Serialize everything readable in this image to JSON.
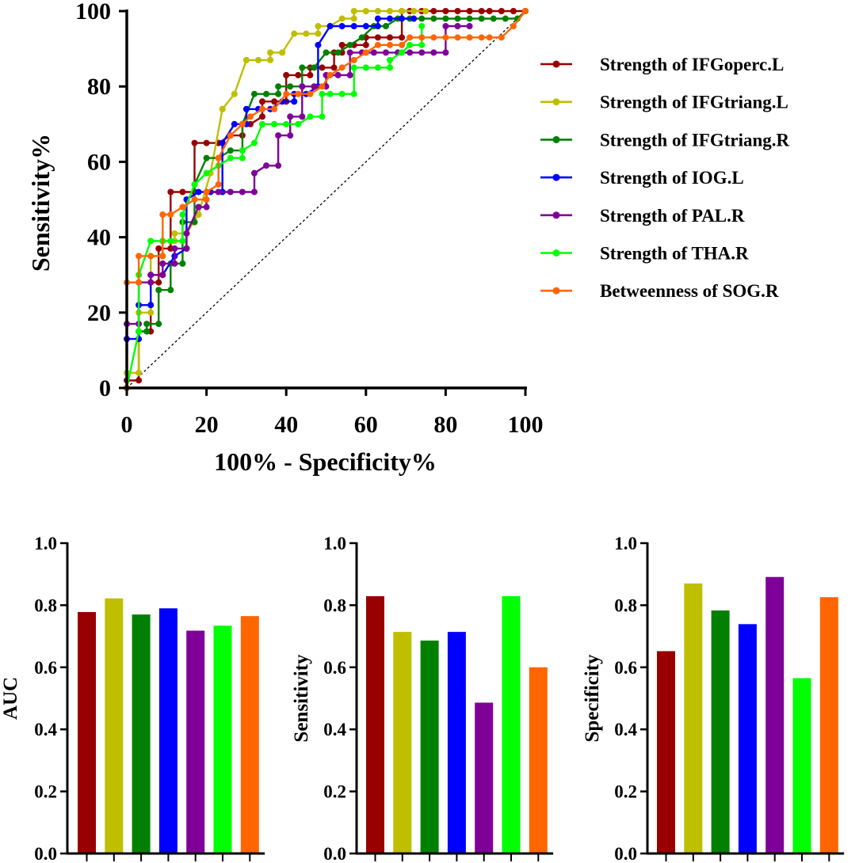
{
  "colors": {
    "IFGoperc_L": "#990000",
    "IFGtriang_L": "#BFBF00",
    "IFGtriang_R": "#008000",
    "IOG_L": "#0000FF",
    "PAL_R": "#7F0099",
    "THA_R": "#00FF00",
    "SOG_R": "#FF6600"
  },
  "chart_data": [
    {
      "type": "line",
      "chart": "roc",
      "xlabel": "100% - Specificity%",
      "ylabel": "Sensitivity%",
      "xlim": [
        0,
        100
      ],
      "ylim": [
        0,
        100
      ],
      "xticks": [
        "0",
        "20",
        "40",
        "60",
        "80",
        "100"
      ],
      "yticks": [
        "0",
        "20",
        "40",
        "60",
        "80",
        "100"
      ],
      "reference_line": [
        [
          0,
          0
        ],
        [
          100,
          100
        ]
      ],
      "legend_position": "right",
      "series": [
        {
          "name": "Strength of IFGoperc.L",
          "color_key": "IFGoperc_L",
          "x": [
            0,
            0,
            3,
            3,
            6,
            6,
            8,
            8,
            11,
            11,
            14,
            17,
            17,
            20,
            23,
            23,
            26,
            29,
            29,
            31,
            34,
            34,
            37,
            40,
            40,
            43,
            46,
            46,
            49,
            52,
            52,
            54,
            54,
            57,
            60,
            60,
            63,
            66,
            69,
            69,
            71,
            74,
            77,
            80,
            83,
            86,
            89,
            91,
            94,
            97,
            100
          ],
          "y": [
            0,
            2,
            2,
            15,
            15,
            28,
            28,
            37,
            37,
            52,
            52,
            52,
            65,
            65,
            65,
            65,
            67,
            67,
            70,
            70,
            72,
            76,
            76,
            76,
            83,
            83,
            83,
            85,
            85,
            85,
            89,
            89,
            91,
            91,
            91,
            93,
            93,
            93,
            93,
            100,
            100,
            100,
            100,
            100,
            100,
            100,
            100,
            100,
            100,
            100,
            100
          ]
        },
        {
          "name": "Strength of IFGtriang.L",
          "color_key": "IFGtriang_L",
          "x": [
            0,
            0,
            3,
            3,
            6,
            6,
            9,
            9,
            12,
            12,
            15,
            18,
            18,
            21,
            21,
            24,
            24,
            27,
            27,
            30,
            30,
            33,
            36,
            36,
            39,
            39,
            42,
            45,
            48,
            48,
            51,
            51,
            54,
            57,
            57,
            60,
            63,
            66,
            69,
            72,
            75
          ],
          "y": [
            0,
            4,
            4,
            20,
            20,
            35,
            35,
            39,
            39,
            41,
            41,
            46,
            46,
            57,
            57,
            74,
            74,
            78,
            78,
            87,
            87,
            87,
            87,
            89,
            89,
            89,
            94,
            94,
            94,
            96,
            96,
            96,
            98,
            98,
            100,
            100,
            100,
            100,
            100,
            100,
            100
          ]
        },
        {
          "name": "Strength of IFGtriang.R",
          "color_key": "IFGtriang_R",
          "x": [
            3,
            5,
            5,
            8,
            8,
            11,
            11,
            14,
            14,
            17,
            17,
            20,
            23,
            26,
            29,
            29,
            32,
            35,
            38,
            38,
            41,
            44,
            44,
            47,
            50,
            53,
            56,
            59,
            62,
            65,
            68,
            71,
            74,
            77,
            80,
            83,
            86,
            89,
            92,
            95,
            98,
            100
          ],
          "y": [
            15,
            15,
            17,
            17,
            26,
            26,
            33,
            33,
            44,
            44,
            54,
            61,
            61,
            63,
            63,
            70,
            78,
            78,
            78,
            80,
            80,
            80,
            85,
            85,
            89,
            89,
            91,
            93,
            96,
            96,
            98,
            98,
            98,
            98,
            98,
            98,
            98,
            98,
            98,
            98,
            98,
            100
          ]
        },
        {
          "name": "Strength of IOG.L",
          "color_key": "IOG_L",
          "x": [
            0,
            0,
            3,
            3,
            6,
            6,
            9,
            12,
            15,
            15,
            18,
            21,
            24,
            24,
            27,
            30,
            30,
            33,
            36,
            39,
            42,
            42,
            45,
            48,
            48,
            51,
            54,
            57,
            60,
            63,
            63,
            66,
            69,
            72
          ],
          "y": [
            0,
            13,
            13,
            22,
            22,
            30,
            30,
            35,
            37,
            50,
            52,
            52,
            52,
            65,
            70,
            70,
            74,
            74,
            74,
            76,
            76,
            78,
            78,
            80,
            91,
            96,
            96,
            96,
            96,
            96,
            98,
            98,
            98,
            98
          ]
        },
        {
          "name": "Strength of PAL.R",
          "color_key": "PAL_R",
          "x": [
            0,
            0,
            3,
            3,
            6,
            6,
            9,
            9,
            12,
            12,
            15,
            15,
            18,
            20,
            20,
            23,
            26,
            29,
            32,
            32,
            35,
            38,
            38,
            41,
            41,
            44,
            44,
            47,
            50,
            50,
            53,
            56,
            56,
            59,
            62,
            65,
            68,
            71,
            74,
            77,
            80,
            80,
            83,
            86
          ],
          "y": [
            0,
            17,
            17,
            28,
            28,
            30,
            30,
            33,
            33,
            37,
            37,
            41,
            48,
            48,
            52,
            52,
            52,
            52,
            52,
            57,
            59,
            59,
            67,
            67,
            72,
            72,
            80,
            80,
            80,
            83,
            83,
            83,
            89,
            89,
            89,
            89,
            89,
            89,
            89,
            89,
            89,
            96,
            96,
            96
          ]
        },
        {
          "name": "Strength of THA.R",
          "color_key": "THA_R",
          "x": [
            0,
            3,
            3,
            6,
            9,
            11,
            14,
            14,
            17,
            20,
            23,
            26,
            29,
            29,
            32,
            34,
            37,
            40,
            43,
            46,
            49,
            49,
            51,
            54,
            57,
            57,
            60,
            63,
            66,
            66,
            69,
            71,
            74,
            74
          ],
          "y": [
            0,
            15,
            30,
            39,
            39,
            39,
            39,
            46,
            54,
            57,
            59,
            61,
            61,
            63,
            65,
            70,
            70,
            70,
            70,
            72,
            72,
            78,
            78,
            78,
            78,
            85,
            85,
            85,
            85,
            87,
            89,
            91,
            91,
            96
          ]
        },
        {
          "name": "Betweenness of SOG.R",
          "color_key": "SOG_R",
          "x": [
            0,
            0,
            3,
            3,
            6,
            9,
            9,
            11,
            14,
            17,
            20,
            20,
            23,
            23,
            26,
            29,
            31,
            34,
            37,
            40,
            43,
            46,
            49,
            51,
            54,
            57,
            60,
            63,
            66,
            69,
            71,
            74,
            77,
            80,
            83,
            86,
            89,
            91,
            94,
            97,
            100
          ],
          "y": [
            0,
            28,
            28,
            35,
            35,
            35,
            46,
            46,
            48,
            50,
            50,
            52,
            54,
            61,
            67,
            70,
            72,
            74,
            74,
            78,
            78,
            78,
            80,
            83,
            85,
            87,
            89,
            91,
            91,
            91,
            93,
            93,
            93,
            93,
            93,
            93,
            93,
            93,
            93,
            96,
            100
          ]
        }
      ]
    },
    {
      "type": "bar",
      "ylabel": "AUC",
      "ylim": [
        0,
        1.0
      ],
      "yticks": [
        "0.0",
        "0.2",
        "0.4",
        "0.6",
        "0.8",
        "1.0"
      ],
      "categories": [
        "Strength of IFGoperc.L",
        "Strength of IFGtriang.L",
        "Strength of IFGtriang.R",
        "Strength of IOG.L",
        "Strength of PAL.R",
        "Strength of THA.R",
        "Betweenness of SOG.R"
      ],
      "values": [
        0.778,
        0.822,
        0.77,
        0.79,
        0.718,
        0.734,
        0.765
      ]
    },
    {
      "type": "bar",
      "ylabel": "Sensitivity",
      "ylim": [
        0,
        1.0
      ],
      "yticks": [
        "0.0",
        "0.2",
        "0.4",
        "0.6",
        "0.8",
        "1.0"
      ],
      "categories": [
        "Strength of IFGoperc.L",
        "Strength of IFGtriang.L",
        "Strength of IFGtriang.R",
        "Strength of IOG.L",
        "Strength of PAL.R",
        "Strength of THA.R",
        "Betweenness of SOG.R"
      ],
      "values": [
        0.829,
        0.714,
        0.686,
        0.714,
        0.486,
        0.829,
        0.6
      ]
    },
    {
      "type": "bar",
      "ylabel": "Specificity",
      "ylim": [
        0,
        1.0
      ],
      "yticks": [
        "0.0",
        "0.2",
        "0.4",
        "0.6",
        "0.8",
        "1.0"
      ],
      "categories": [
        "Strength of IFGoperc.L",
        "Strength of IFGtriang.L",
        "Strength of IFGtriang.R",
        "Strength of IOG.L",
        "Strength of PAL.R",
        "Strength of THA.R",
        "Betweenness of SOG.R"
      ],
      "values": [
        0.652,
        0.87,
        0.783,
        0.739,
        0.891,
        0.565,
        0.826
      ]
    }
  ]
}
